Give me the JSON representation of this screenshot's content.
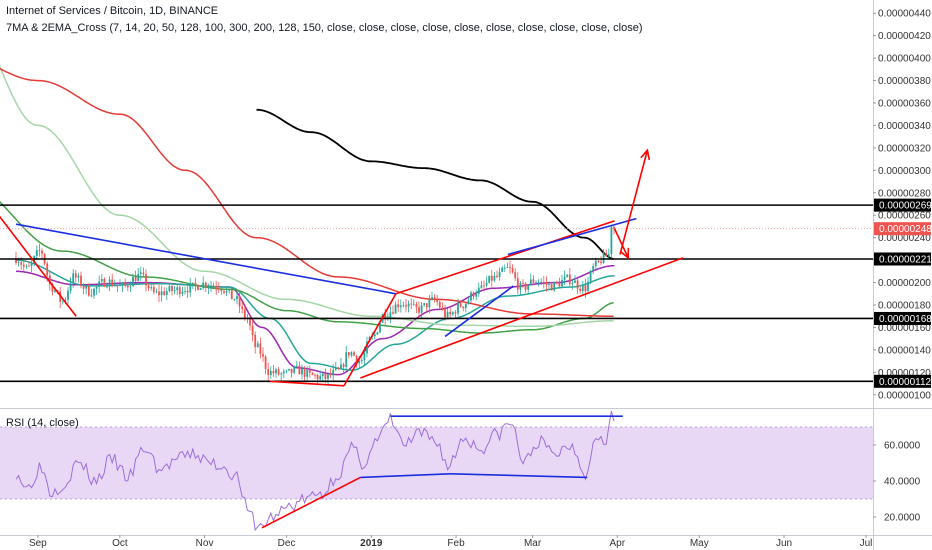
{
  "header": {
    "symbol_line": "Internet of Services / Bitcoin, 1D, BINANCE",
    "indicator_line": "7MA & 2EMA_Cross (7, 14, 20, 50, 128, 100, 300, 200, 128, 150, close, close, close, close, close, close, close, close, close, close)"
  },
  "rsi_panel": {
    "label": "RSI (14, close)"
  },
  "colors": {
    "up": "#26a69a",
    "down": "#ef5350",
    "rsi_band": "#e9d8f5",
    "rsi_line": "#9c6ddb",
    "hline": "#000000",
    "trend_red": "#ff0000",
    "trend_blue": "#1a2ee0",
    "ma_black": "#000000"
  },
  "chart_data": [
    {
      "type": "candlestick",
      "x_tick_labels": [
        "Sep",
        "Oct",
        "Nov",
        "Dec",
        "2019",
        "Feb",
        "Mar",
        "Apr",
        "May",
        "Jun",
        "Jul"
      ],
      "y_axis": {
        "range": [
          9e-07,
          4.5e-06
        ],
        "tick_labels": [
          "0.00000100",
          "0.00000120",
          "0.00000140",
          "0.00000160",
          "0.00000180",
          "0.00000200",
          "0.00000220",
          "0.00000240",
          "0.00000260",
          "0.00000280",
          "0.00000300",
          "0.00000320",
          "0.00000340",
          "0.00000360",
          "0.00000380",
          "0.00000400",
          "0.00000420",
          "0.00000440"
        ]
      },
      "horizontal_levels": [
        {
          "value": 2.69e-06,
          "label": "0.00000269"
        },
        {
          "value": 2.21e-06,
          "label": "0.00000221"
        },
        {
          "value": 1.68e-06,
          "label": "0.00000168"
        },
        {
          "value": 1.12e-06,
          "label": "0.00000112"
        }
      ],
      "last_price": {
        "value": 2.48e-06,
        "label": "0.00000248"
      },
      "price_path": [
        [
          "2018-08-24",
          2.22e-06
        ],
        [
          "2018-08-28",
          2.12e-06
        ],
        [
          "2018-09-02",
          2.28e-06
        ],
        [
          "2018-09-06",
          1.96e-06
        ],
        [
          "2018-09-10",
          1.83e-06
        ],
        [
          "2018-09-14",
          2.05e-06
        ],
        [
          "2018-09-20",
          1.92e-06
        ],
        [
          "2018-09-26",
          2.01e-06
        ],
        [
          "2018-10-02",
          1.96e-06
        ],
        [
          "2018-10-08",
          2.06e-06
        ],
        [
          "2018-10-14",
          1.9e-06
        ],
        [
          "2018-10-20",
          1.93e-06
        ],
        [
          "2018-10-26",
          1.95e-06
        ],
        [
          "2018-11-01",
          1.99e-06
        ],
        [
          "2018-11-06",
          1.97e-06
        ],
        [
          "2018-11-12",
          1.86e-06
        ],
        [
          "2018-11-16",
          1.7e-06
        ],
        [
          "2018-11-20",
          1.42e-06
        ],
        [
          "2018-11-25",
          1.2e-06
        ],
        [
          "2018-11-30",
          1.18e-06
        ],
        [
          "2018-12-05",
          1.22e-06
        ],
        [
          "2018-12-10",
          1.17e-06
        ],
        [
          "2018-12-15",
          1.15e-06
        ],
        [
          "2018-12-20",
          1.21e-06
        ],
        [
          "2018-12-24",
          1.38e-06
        ],
        [
          "2018-12-28",
          1.3e-06
        ],
        [
          "2019-01-01",
          1.5e-06
        ],
        [
          "2019-01-06",
          1.72e-06
        ],
        [
          "2019-01-12",
          1.82e-06
        ],
        [
          "2019-01-18",
          1.76e-06
        ],
        [
          "2019-01-24",
          1.84e-06
        ],
        [
          "2019-01-29",
          1.7e-06
        ],
        [
          "2019-02-03",
          1.8e-06
        ],
        [
          "2019-02-09",
          1.93e-06
        ],
        [
          "2019-02-15",
          2.04e-06
        ],
        [
          "2019-02-20",
          2.12e-06
        ],
        [
          "2019-02-25",
          1.95e-06
        ],
        [
          "2019-03-02",
          2.02e-06
        ],
        [
          "2019-03-08",
          1.97e-06
        ],
        [
          "2019-03-14",
          2.03e-06
        ],
        [
          "2019-03-20",
          1.95e-06
        ],
        [
          "2019-03-24",
          2.15e-06
        ],
        [
          "2019-03-27",
          2.22e-06
        ],
        [
          "2019-03-29",
          2.25e-06
        ],
        [
          "2019-03-30",
          2.54e-06
        ],
        [
          "2019-03-31",
          2.48e-06
        ]
      ],
      "series": [
        {
          "color": "#9c27b0",
          "points": [
            [
              "2018-08-24",
              2.1e-06
            ],
            [
              "2018-09-15",
              1.98e-06
            ],
            [
              "2018-10-10",
              2e-06
            ],
            [
              "2018-11-10",
              1.96e-06
            ],
            [
              "2018-11-22",
              1.6e-06
            ],
            [
              "2018-12-05",
              1.24e-06
            ],
            [
              "2018-12-20",
              1.18e-06
            ],
            [
              "2019-01-05",
              1.5e-06
            ],
            [
              "2019-01-25",
              1.76e-06
            ],
            [
              "2019-02-15",
              1.95e-06
            ],
            [
              "2019-03-10",
              2e-06
            ],
            [
              "2019-03-31",
              2.15e-06
            ]
          ]
        },
        {
          "color": "#26a69a",
          "points": [
            [
              "2018-08-24",
              2.2e-06
            ],
            [
              "2018-09-20",
              1.97e-06
            ],
            [
              "2018-10-15",
              1.99e-06
            ],
            [
              "2018-11-10",
              1.96e-06
            ],
            [
              "2018-11-25",
              1.68e-06
            ],
            [
              "2018-12-10",
              1.28e-06
            ],
            [
              "2018-12-25",
              1.22e-06
            ],
            [
              "2019-01-10",
              1.45e-06
            ],
            [
              "2019-01-30",
              1.68e-06
            ],
            [
              "2019-02-20",
              1.88e-06
            ],
            [
              "2019-03-15",
              1.96e-06
            ],
            [
              "2019-03-31",
              2.06e-06
            ]
          ]
        },
        {
          "color": "#43a047",
          "points": [
            [
              "2018-08-05",
              2.9e-06
            ],
            [
              "2018-09-10",
              2.28e-06
            ],
            [
              "2018-10-10",
              2.05e-06
            ],
            [
              "2018-11-10",
              1.94e-06
            ],
            [
              "2018-12-01",
              1.75e-06
            ],
            [
              "2018-12-20",
              1.65e-06
            ],
            [
              "2019-01-20",
              1.59e-06
            ],
            [
              "2019-02-10",
              1.55e-06
            ],
            [
              "2019-03-01",
              1.58e-06
            ],
            [
              "2019-03-20",
              1.68e-06
            ],
            [
              "2019-03-31",
              1.82e-06
            ]
          ]
        },
        {
          "color": "#a5d6a7",
          "points": [
            [
              "2018-08-05",
              4.4e-06
            ],
            [
              "2018-09-01",
              3.4e-06
            ],
            [
              "2018-10-01",
              2.6e-06
            ],
            [
              "2018-11-01",
              2.1e-06
            ],
            [
              "2018-12-01",
              1.85e-06
            ],
            [
              "2019-01-01",
              1.7e-06
            ],
            [
              "2019-02-01",
              1.62e-06
            ],
            [
              "2019-03-01",
              1.61e-06
            ],
            [
              "2019-03-31",
              1.66e-06
            ]
          ]
        },
        {
          "color": "#e53935",
          "points": [
            [
              "2018-08-05",
              4e-06
            ],
            [
              "2018-09-01",
              3.8e-06
            ],
            [
              "2018-10-01",
              3.5e-06
            ],
            [
              "2018-10-25",
              3e-06
            ],
            [
              "2018-11-20",
              2.4e-06
            ],
            [
              "2018-12-20",
              2.05e-06
            ],
            [
              "2019-01-25",
              1.85e-06
            ],
            [
              "2019-03-01",
              1.72e-06
            ],
            [
              "2019-03-31",
              1.7e-06
            ]
          ]
        },
        {
          "color": "#000000",
          "points": [
            [
              "2018-11-20",
              3.54e-06
            ],
            [
              "2018-12-10",
              3.34e-06
            ],
            [
              "2019-01-01",
              3.08e-06
            ],
            [
              "2019-01-20",
              3.02e-06
            ],
            [
              "2019-02-10",
              2.91e-06
            ],
            [
              "2019-03-01",
              2.72e-06
            ],
            [
              "2019-03-20",
              2.4e-06
            ],
            [
              "2019-03-31",
              2.21e-06
            ]
          ]
        }
      ],
      "drawn_lines": [
        {
          "color": "#ff0000",
          "from": [
            "2018-08-05",
            3e-06
          ],
          "to": [
            "2018-09-15",
            1.7e-06
          ]
        },
        {
          "color": "#1a2ee0",
          "from": [
            "2018-08-24",
            2.52e-06
          ],
          "to": [
            "2019-01-10",
            1.9e-06
          ]
        },
        {
          "color": "#ff0000",
          "from": [
            "2018-11-25",
            1.12e-06
          ],
          "to": [
            "2018-12-22",
            1.08e-06
          ]
        },
        {
          "color": "#ff0000",
          "from": [
            "2018-12-28",
            1.15e-06
          ],
          "to": [
            "2019-04-25",
            2.22e-06
          ]
        },
        {
          "color": "#ff0000",
          "from": [
            "2018-12-22",
            1.08e-06
          ],
          "to": [
            "2019-01-10",
            1.9e-06
          ]
        },
        {
          "color": "#ff0000",
          "from": [
            "2019-01-10",
            1.9e-06
          ],
          "to": [
            "2019-03-31",
            2.55e-06
          ]
        },
        {
          "color": "#1a2ee0",
          "from": [
            "2019-01-28",
            1.52e-06
          ],
          "to": [
            "2019-02-22",
            1.97e-06
          ]
        },
        {
          "color": "#1a2ee0",
          "from": [
            "2019-02-20",
            2.25e-06
          ],
          "to": [
            "2019-04-08",
            2.57e-06
          ]
        }
      ],
      "arrows": [
        {
          "color": "#ff0000",
          "from": [
            "2019-04-02",
            2.25e-06
          ],
          "to": [
            "2019-04-12",
            3.18e-06
          ]
        },
        {
          "color": "#ff0000",
          "from": [
            "2019-03-31",
            2.48e-06
          ],
          "to": [
            "2019-04-05",
            2.22e-06
          ]
        }
      ]
    },
    {
      "type": "line",
      "name": "RSI (14, close)",
      "y_axis": {
        "range": [
          10,
          80
        ],
        "tick_labels": [
          "20.0000",
          "40.0000",
          "60.0000"
        ]
      },
      "band": [
        30,
        70
      ],
      "values": [
        [
          "2018-08-24",
          45
        ],
        [
          "2018-08-28",
          36
        ],
        [
          "2018-09-02",
          48
        ],
        [
          "2018-09-06",
          34
        ],
        [
          "2018-09-10",
          38
        ],
        [
          "2018-09-16",
          50
        ],
        [
          "2018-09-22",
          40
        ],
        [
          "2018-09-28",
          52
        ],
        [
          "2018-10-04",
          42
        ],
        [
          "2018-10-10",
          58
        ],
        [
          "2018-10-16",
          46
        ],
        [
          "2018-10-22",
          52
        ],
        [
          "2018-10-28",
          55
        ],
        [
          "2018-11-03",
          50
        ],
        [
          "2018-11-08",
          48
        ],
        [
          "2018-11-13",
          42
        ],
        [
          "2018-11-17",
          22
        ],
        [
          "2018-11-21",
          14
        ],
        [
          "2018-11-26",
          20
        ],
        [
          "2018-12-02",
          26
        ],
        [
          "2018-12-08",
          30
        ],
        [
          "2018-12-14",
          33
        ],
        [
          "2018-12-20",
          44
        ],
        [
          "2018-12-25",
          58
        ],
        [
          "2018-12-29",
          50
        ],
        [
          "2019-01-03",
          62
        ],
        [
          "2019-01-08",
          74
        ],
        [
          "2019-01-13",
          60
        ],
        [
          "2019-01-19",
          66
        ],
        [
          "2019-01-25",
          62
        ],
        [
          "2019-01-29",
          48
        ],
        [
          "2019-02-04",
          64
        ],
        [
          "2019-02-10",
          58
        ],
        [
          "2019-02-16",
          66
        ],
        [
          "2019-02-21",
          72
        ],
        [
          "2019-02-26",
          50
        ],
        [
          "2019-03-03",
          62
        ],
        [
          "2019-03-09",
          55
        ],
        [
          "2019-03-15",
          60
        ],
        [
          "2019-03-21",
          44
        ],
        [
          "2019-03-24",
          66
        ],
        [
          "2019-03-28",
          64
        ],
        [
          "2019-03-30",
          77
        ],
        [
          "2019-03-31",
          72
        ]
      ],
      "drawn_lines": [
        {
          "color": "#ff0000",
          "from": [
            "2018-11-22",
            14
          ],
          "to": [
            "2018-12-28",
            42
          ]
        },
        {
          "color": "#1a2ee0",
          "from": [
            "2018-12-28",
            42
          ],
          "to": [
            "2019-01-30",
            44
          ]
        },
        {
          "color": "#1a2ee0",
          "from": [
            "2019-01-30",
            44
          ],
          "to": [
            "2019-03-21",
            42
          ]
        },
        {
          "color": "#1a2ee0",
          "from": [
            "2019-01-08",
            76
          ],
          "to": [
            "2019-04-03",
            76
          ]
        }
      ]
    }
  ]
}
